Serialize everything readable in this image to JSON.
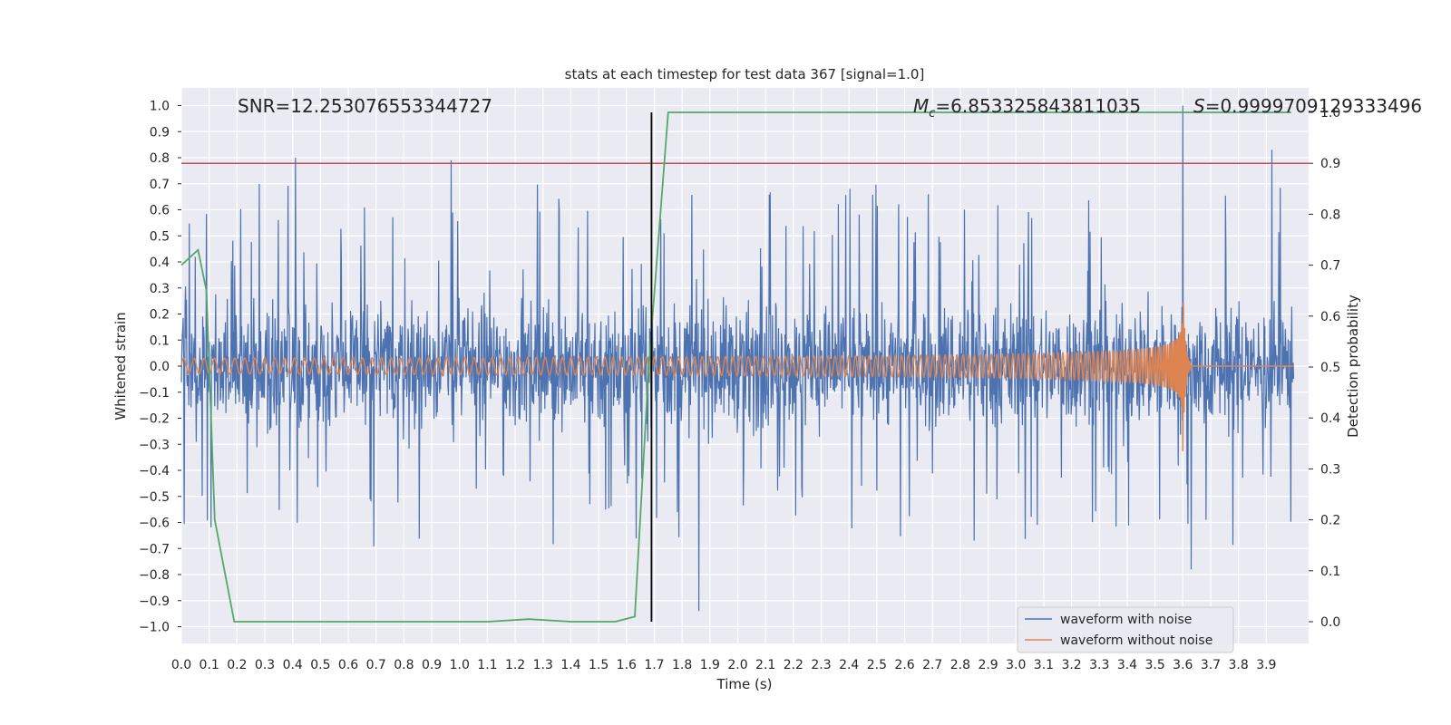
{
  "chart_data": {
    "type": "line",
    "title": "stats at each timestep for test data 367 [signal=1.0]",
    "xlabel": "Time (s)",
    "ylabel": "Whitened strain",
    "y2label": "Detection probability",
    "xlim": [
      0.0,
      4.0
    ],
    "ylim": [
      -1.05,
      1.1
    ],
    "y2lim": [
      -0.05,
      1.0
    ],
    "x_ticks": [
      "0.0",
      "0.1",
      "0.2",
      "0.3",
      "0.4",
      "0.5",
      "0.6",
      "0.7",
      "0.8",
      "0.9",
      "1.0",
      "1.1",
      "1.2",
      "1.3",
      "1.4",
      "1.5",
      "1.6",
      "1.7",
      "1.8",
      "1.9",
      "2.0",
      "2.1",
      "2.2",
      "2.3",
      "2.4",
      "2.5",
      "2.6",
      "2.7",
      "2.8",
      "2.9",
      "3.0",
      "3.1",
      "3.2",
      "3.3",
      "3.4",
      "3.5",
      "3.6",
      "3.7",
      "3.8",
      "3.9"
    ],
    "y_ticks": [
      "1.0",
      "0.9",
      "0.8",
      "0.7",
      "0.6",
      "0.5",
      "0.4",
      "0.3",
      "0.2",
      "0.1",
      "0.0",
      "−0.1",
      "−0.2",
      "−0.3",
      "−0.4",
      "−0.5",
      "−0.6",
      "−0.7",
      "−0.8",
      "−0.9",
      "−1.0"
    ],
    "y2_ticks": [
      "1.0",
      "0.9",
      "0.8",
      "0.7",
      "0.6",
      "0.5",
      "0.4",
      "0.3",
      "0.2",
      "0.1",
      "0.0"
    ],
    "grid": true,
    "legend_position": "bottom-right",
    "annotations": {
      "snr": "SNR=12.253076553344727",
      "mc_symbol": "M",
      "mc_sub": "c",
      "mc_value": "=6.853325843811035",
      "s_symbol": "S",
      "s_value": "=0.9999709129333496"
    },
    "threshold_y2": 0.9,
    "detection_time": 1.69,
    "series": [
      {
        "name": "waveform with noise",
        "color": "#4c72b0",
        "kind": "noise",
        "amplitude_envelope": 0.8,
        "spikes": [
          [
            0.41,
            0.8
          ],
          [
            0.97,
            0.79
          ],
          [
            1.86,
            -0.94
          ],
          [
            3.6,
            1.0
          ],
          [
            3.92,
            0.83
          ],
          [
            3.63,
            -0.78
          ]
        ]
      },
      {
        "name": "waveform without noise",
        "color": "#dd8452",
        "kind": "chirp",
        "start_amplitude": 0.03,
        "peak_time": 3.6,
        "peak_amplitude": 0.34
      },
      {
        "name": "detection probability",
        "color": "#55a868",
        "axis": "right",
        "x": [
          0.0,
          0.06,
          0.09,
          0.12,
          0.19,
          0.25,
          0.5,
          1.0,
          1.1,
          1.25,
          1.4,
          1.56,
          1.63,
          1.68,
          1.75,
          3.99
        ],
        "y": [
          0.7,
          0.73,
          0.65,
          0.2,
          0.0,
          0.0,
          0.0,
          0.0,
          0.0,
          0.005,
          0.0,
          0.0,
          0.01,
          0.5,
          1.0,
          1.0
        ]
      }
    ]
  }
}
